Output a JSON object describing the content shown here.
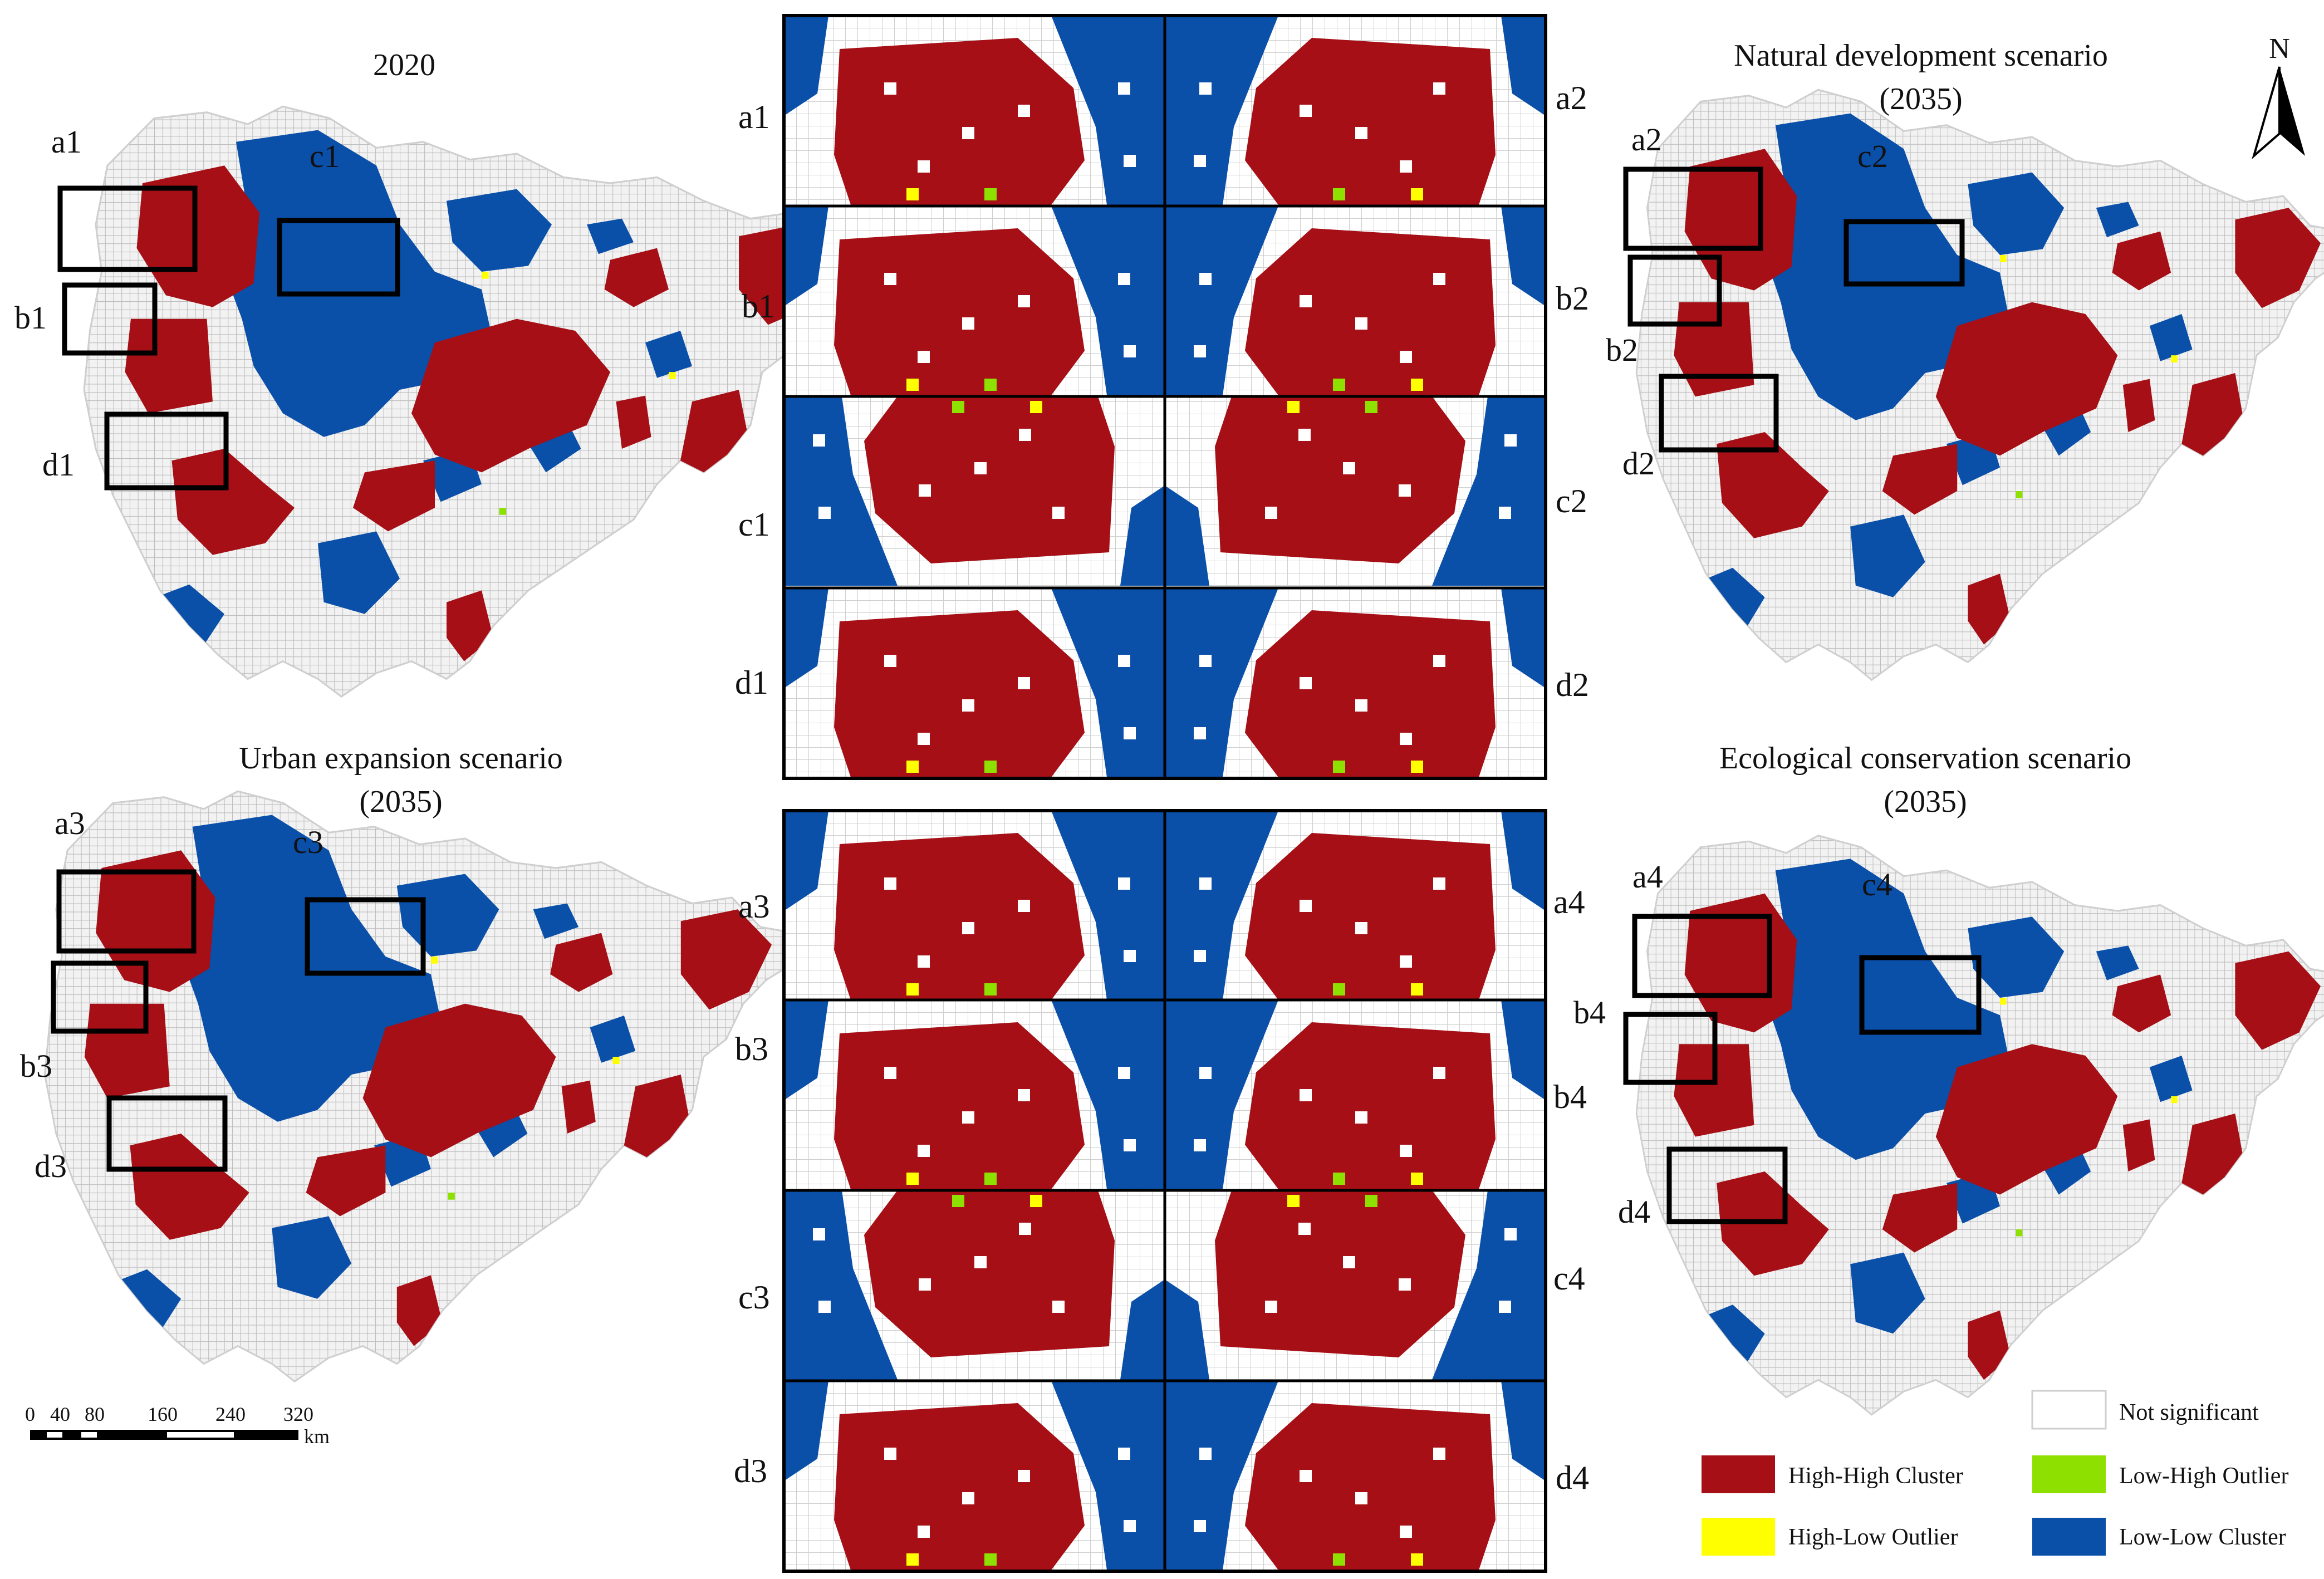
{
  "maps": {
    "m2020": {
      "title": "2020",
      "subtitle": ""
    },
    "natural": {
      "title": "Natural development scenario",
      "subtitle": "(2035)"
    },
    "urban": {
      "title": "Urban expansion scenario",
      "subtitle": "(2035)"
    },
    "ecological": {
      "title": "Ecological conservation scenario",
      "subtitle": "(2035)"
    }
  },
  "box_labels": {
    "m2020": [
      "a1",
      "b1",
      "c1",
      "d1"
    ],
    "natural": [
      "a2",
      "b2",
      "c2",
      "d2"
    ],
    "urban": [
      "a3",
      "b3",
      "c3",
      "d3"
    ],
    "ecological": [
      "a4",
      "b4",
      "c4",
      "d4"
    ]
  },
  "panel_labels": {
    "top_left": [
      "a1",
      "b1",
      "c1",
      "d1"
    ],
    "top_right": [
      "a2",
      "b2",
      "c2",
      "d2"
    ],
    "bottom_left": [
      "a3",
      "b3",
      "c3",
      "d3"
    ],
    "bottom_right": [
      "a4",
      "b4",
      "c4",
      "d4"
    ]
  },
  "north_arrow": "N",
  "scale_bar": {
    "ticks": [
      "0",
      "40",
      "80",
      "160",
      "240",
      "320"
    ],
    "unit": "km"
  },
  "legend": [
    {
      "label": "Not significant",
      "color": "#ffffff"
    },
    {
      "label": "High-High Cluster",
      "color": "#a50f15"
    },
    {
      "label": "Low-High Outlier",
      "color": "#8ee000"
    },
    {
      "label": "High-Low Outlier",
      "color": "#ffff00"
    },
    {
      "label": "Low-Low Cluster",
      "color": "#0a4fa8"
    }
  ],
  "colors": {
    "hh": "#a50f15",
    "ll": "#0a4fa8",
    "hl": "#ffff00",
    "lh": "#8ee000",
    "grid": "#bdbdbd"
  }
}
